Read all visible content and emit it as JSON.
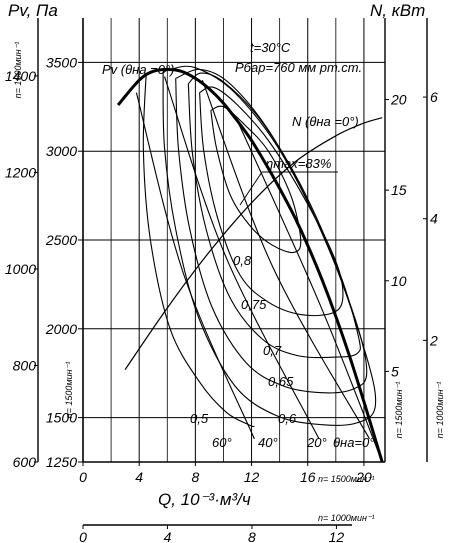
{
  "chart_data": {
    "type": "line",
    "title": "",
    "y_left_label": "Pv, Па",
    "y_right_label": "N, кВт",
    "x_label": "Q, 10⁻³·м³/ч",
    "conditions": {
      "temperature": "t=30°С",
      "pressure": "Рбар=760 мм рт.ст."
    },
    "speed_labels": {
      "left_outer": "n= 1000мин⁻¹",
      "left_inner": "n= 1500мин⁻¹",
      "right_inner": "n= 1500мин⁻¹",
      "right_outer": "n= 1000мин⁻¹",
      "bottom_inner": "n= 1500мин⁻¹",
      "bottom_outer": "n= 1000мин⁻¹"
    },
    "axes": {
      "x_1500": {
        "ticks": [
          "0",
          "4",
          "8",
          "12",
          "16",
          "20"
        ],
        "values": [
          0,
          4,
          8,
          12,
          16,
          20
        ],
        "range": [
          0,
          21.5
        ]
      },
      "x_1000": {
        "ticks": [
          "0",
          "4",
          "8",
          "12"
        ],
        "values": [
          0,
          4,
          8,
          12
        ],
        "range": [
          0,
          14.3
        ]
      },
      "y_pv_1500": {
        "ticks": [
          "1250",
          "1500",
          "2000",
          "2500",
          "3000",
          "3500"
        ],
        "values": [
          1250,
          1500,
          2000,
          2500,
          3000,
          3500
        ],
        "range": [
          1250,
          3750
        ]
      },
      "y_pv_1000": {
        "ticks": [
          "600",
          "800",
          "1000",
          "1200",
          "1400"
        ],
        "values": [
          600,
          800,
          1000,
          1200,
          1400
        ],
        "range": [
          600,
          1520
        ]
      },
      "y_n_1500": {
        "ticks": [
          "5",
          "10",
          "15",
          "20"
        ],
        "values": [
          5,
          10,
          15,
          20
        ],
        "range": [
          0,
          24.5
        ]
      },
      "y_n_1000": {
        "ticks": [
          "2",
          "4",
          "6"
        ],
        "values": [
          2,
          4,
          6
        ],
        "range": [
          0,
          7.3
        ]
      }
    },
    "pv_curve": {
      "name": "Pv (θна =0°)",
      "x": [
        2.5,
        4,
        5,
        6,
        7,
        8,
        9,
        10,
        11,
        12,
        13,
        14,
        15,
        16,
        17,
        18,
        19,
        20,
        21.3
      ],
      "y": [
        3260,
        3400,
        3450,
        3460,
        3450,
        3410,
        3350,
        3270,
        3170,
        3060,
        2930,
        2790,
        2640,
        2470,
        2280,
        2070,
        1840,
        1590,
        1250
      ]
    },
    "n_curve": {
      "name": "N (θна =0°)",
      "x": [
        3,
        6,
        9,
        12,
        15,
        18,
        20,
        21.3
      ],
      "y": [
        5.1,
        8.5,
        11.6,
        14.3,
        16.5,
        18.0,
        18.7,
        19.0
      ]
    },
    "efficiency_max": "ηmax=83%",
    "efficiency_contours": [
      {
        "label": "0,8",
        "x": [
          9.1,
          9.5,
          10.5,
          12,
          13.5,
          15,
          15.5,
          14.8,
          13.2,
          11.5,
          10.0,
          9.1
        ],
        "y": [
          3230,
          3020,
          2750,
          2570,
          2470,
          2430,
          2500,
          2750,
          3000,
          3150,
          3250,
          3230
        ]
      },
      {
        "label": "0,75",
        "x": [
          8.3,
          8.6,
          9.6,
          11.2,
          13.2,
          15.5,
          17.8,
          18.5,
          18.0,
          15.8,
          13.2,
          11.0,
          9.3,
          8.3
        ],
        "y": [
          3330,
          3000,
          2620,
          2300,
          2150,
          2080,
          2090,
          2180,
          2380,
          2730,
          3060,
          3260,
          3360,
          3330
        ]
      },
      {
        "label": "0,7",
        "x": [
          7.5,
          7.8,
          8.8,
          10.5,
          12.8,
          15.2,
          17.8,
          19.5,
          19.6,
          18.2,
          15.5,
          12.6,
          10.0,
          8.4,
          7.5
        ],
        "y": [
          3380,
          2980,
          2550,
          2170,
          1940,
          1850,
          1840,
          1860,
          1960,
          2330,
          2810,
          3180,
          3390,
          3440,
          3380
        ]
      },
      {
        "label": "0,65",
        "x": [
          6.6,
          6.8,
          7.6,
          9.2,
          11.6,
          14.2,
          17.0,
          19.2,
          20.2,
          19.4,
          16.8,
          13.6,
          10.6,
          8.4,
          6.6
        ],
        "y": [
          3410,
          3010,
          2560,
          2120,
          1810,
          1680,
          1640,
          1660,
          1750,
          2050,
          2580,
          3070,
          3370,
          3460,
          3410
        ]
      },
      {
        "label": "0,6",
        "x": [
          5.7,
          5.8,
          6.6,
          8.2,
          10.8,
          13.8,
          17.0,
          19.5,
          20.8,
          20.2,
          17.6,
          14.2,
          10.8,
          8.0,
          6.2,
          5.7
        ],
        "y": [
          3440,
          3020,
          2560,
          2070,
          1680,
          1510,
          1460,
          1470,
          1560,
          1840,
          2430,
          2980,
          3330,
          3470,
          3460,
          3440
        ]
      },
      {
        "label": "0,5",
        "x": [
          4.5,
          4.3,
          4.8,
          6.2,
          8.3,
          10.2,
          11.8,
          12.2
        ],
        "y": [
          3440,
          3000,
          2500,
          2000,
          1700,
          1530,
          1460,
          1450
        ]
      }
    ],
    "blade_angle_lines": [
      {
        "label": "60°",
        "x": [
          3.8,
          7.2,
          12.2
        ],
        "y": [
          3330,
          2300,
          1380
        ]
      },
      {
        "label": "40°",
        "x": [
          5.8,
          10.2,
          16.8
        ],
        "y": [
          3420,
          2400,
          1380
        ]
      },
      {
        "label": "20°",
        "x": [
          8.5,
          13.5,
          20.4
        ],
        "y": [
          3400,
          2350,
          1380
        ]
      },
      {
        "label": "θна=0°",
        "x": [
          11.0,
          16.8,
          21.3
        ],
        "y": [
          3170,
          2150,
          1250
        ]
      }
    ]
  }
}
